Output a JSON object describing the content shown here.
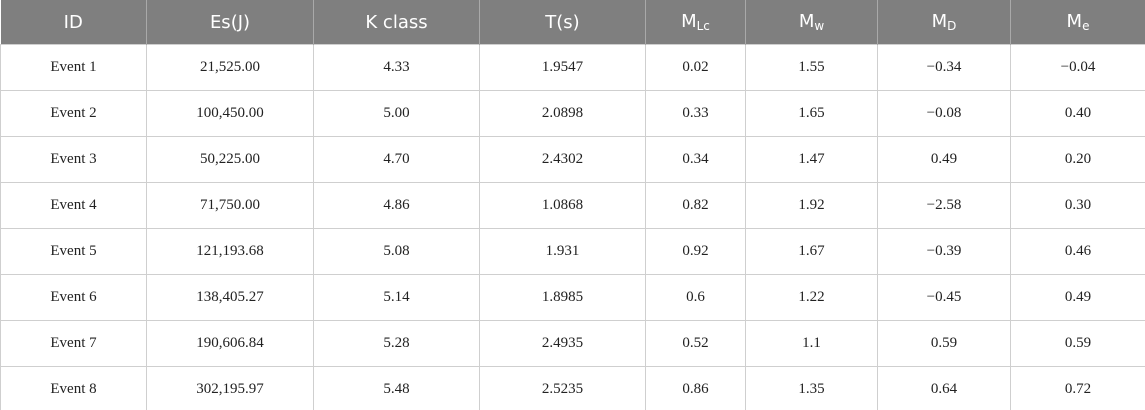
{
  "table": {
    "header": [
      "ID",
      "Es(J)",
      "K class",
      "T(s)",
      {
        "main": "M",
        "sub": "Lc"
      },
      {
        "main": "M",
        "sub": "w"
      },
      {
        "main": "M",
        "sub": "D"
      },
      {
        "main": "M",
        "sub": "e"
      }
    ],
    "rows": [
      [
        "Event 1",
        "21,525.00",
        "4.33",
        "1.9547",
        "0.02",
        "1.55",
        "−0.34",
        "−0.04"
      ],
      [
        "Event 2",
        "100,450.00",
        "5.00",
        "2.0898",
        "0.33",
        "1.65",
        "−0.08",
        "0.40"
      ],
      [
        "Event 3",
        "50,225.00",
        "4.70",
        "2.4302",
        "0.34",
        "1.47",
        "0.49",
        "0.20"
      ],
      [
        "Event 4",
        "71,750.00",
        "4.86",
        "1.0868",
        "0.82",
        "1.92",
        "−2.58",
        "0.30"
      ],
      [
        "Event 5",
        "121,193.68",
        "5.08",
        "1.931",
        "0.92",
        "1.67",
        "−0.39",
        "0.46"
      ],
      [
        "Event 6",
        "138,405.27",
        "5.14",
        "1.8985",
        "0.6",
        "1.22",
        "−0.45",
        "0.49"
      ],
      [
        "Event 7",
        "190,606.84",
        "5.28",
        "2.4935",
        "0.52",
        "1.1",
        "0.59",
        "0.59"
      ],
      [
        "Event 8",
        "302,195.97",
        "5.48",
        "2.5235",
        "0.86",
        "1.35",
        "0.64",
        "0.72"
      ]
    ]
  }
}
